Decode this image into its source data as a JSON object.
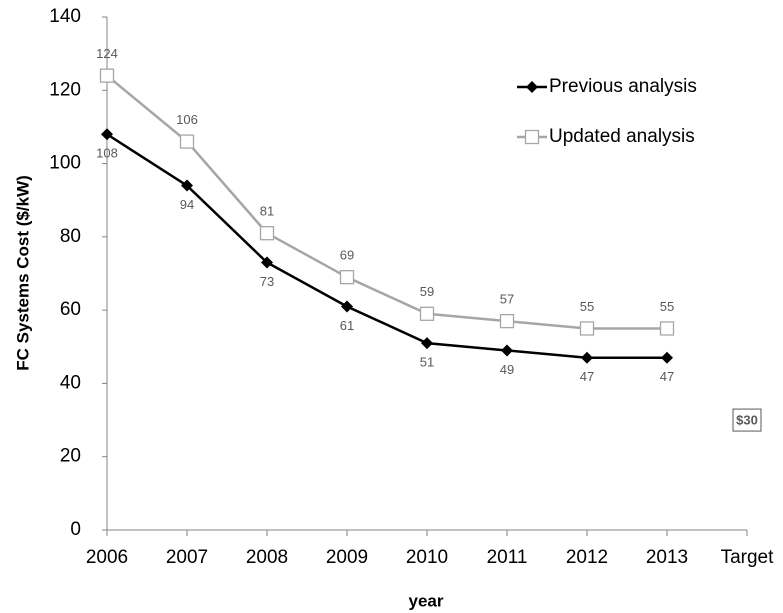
{
  "chart_data": {
    "type": "line",
    "x_label": "year",
    "y_label": "FC Systems Cost ($/kW)",
    "categories": [
      "2006",
      "2007",
      "2008",
      "2009",
      "2010",
      "2011",
      "2012",
      "2013",
      "Target"
    ],
    "series": [
      {
        "name": "Previous analysis",
        "color": "#000000",
        "marker": "diamond",
        "label_position": "below",
        "values": [
          108,
          94,
          73,
          61,
          51,
          49,
          47,
          47,
          null
        ]
      },
      {
        "name": "Updated analysis",
        "color": "#a6a6a6",
        "marker": "square",
        "label_position": "above",
        "values": [
          124,
          106,
          81,
          69,
          59,
          57,
          55,
          55,
          null
        ]
      }
    ],
    "annotations": [
      {
        "text": "$30",
        "value": 30,
        "category": "Target"
      }
    ],
    "ylim": [
      0,
      140
    ],
    "yticks": [
      0,
      20,
      40,
      60,
      80,
      100,
      120,
      140
    ],
    "legend": "upper right",
    "grid": false
  }
}
